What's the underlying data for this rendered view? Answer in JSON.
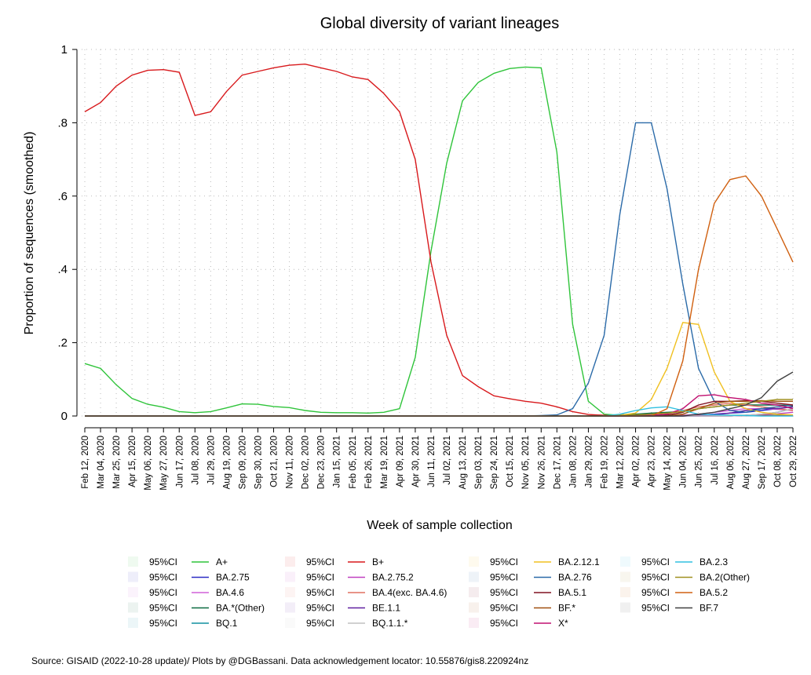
{
  "chart_data": {
    "type": "line",
    "title": "Global diversity of variant lineages",
    "y_label": "Proportion of sequences (smoothed)",
    "x_label": "Week of sample collection",
    "source": "Source: GISAID (2022-10-28 update)/ Plots by @DGBassani. Data acknowledgement locator: 10.55876/gis8.220924nz",
    "ci_label": "95%CI",
    "grid": true,
    "ylim": [
      0,
      1
    ],
    "yticks": [
      0,
      {
        "value": 0.2,
        "label": ".2"
      },
      {
        "value": 0.4,
        "label": ".4"
      },
      {
        "value": 0.6,
        "label": ".6"
      },
      {
        "value": 0.8,
        "label": ".8"
      },
      1
    ],
    "categories": [
      "Feb 12, 2020",
      "Mar 04, 2020",
      "Mar 25, 2020",
      "Apr 15, 2020",
      "May 06, 2020",
      "May 27, 2020",
      "Jun 17, 2020",
      "Jul 08, 2020",
      "Jul 29, 2020",
      "Aug 19, 2020",
      "Sep 09, 2020",
      "Sep 30, 2020",
      "Oct 21, 2020",
      "Nov 11, 2020",
      "Dec 02, 2020",
      "Dec 23, 2020",
      "Jan 15, 2021",
      "Feb 05, 2021",
      "Feb 26, 2021",
      "Mar 19, 2021",
      "Apr 09, 2021",
      "Apr 30, 2021",
      "Jun 11, 2021",
      "Jul 02, 2021",
      "Aug 13, 2021",
      "Sep 03, 2021",
      "Sep 24, 2021",
      "Oct 15, 2021",
      "Nov 05, 2021",
      "Nov 26, 2021",
      "Dec 17, 2021",
      "Jan 08, 2022",
      "Jan 29, 2022",
      "Feb 19, 2022",
      "Mar 12, 2022",
      "Apr 02, 2022",
      "Apr 23, 2022",
      "May 14, 2022",
      "Jun 04, 2022",
      "Jun 25, 2022",
      "Jul 16, 2022",
      "Aug 06, 2022",
      "Aug 27, 2022",
      "Sep 17, 2022",
      "Oct 08, 2022",
      "Oct 29, 2022"
    ],
    "series": [
      {
        "name": "A+",
        "color": "#2fc43a",
        "values": [
          0.143,
          0.13,
          0.085,
          0.048,
          0.032,
          0.024,
          0.012,
          0.009,
          0.012,
          0.022,
          0.033,
          0.032,
          0.026,
          0.023,
          0.015,
          0.01,
          0.009,
          0.009,
          0.008,
          0.01,
          0.02,
          0.16,
          0.45,
          0.69,
          0.86,
          0.91,
          0.935,
          0.948,
          0.952,
          0.95,
          0.72,
          0.25,
          0.04,
          0.005,
          0.002,
          0.002,
          0.002,
          0.002,
          0.002,
          0.002,
          0.002,
          0.002,
          0.002,
          0.002,
          0.002,
          0.002
        ]
      },
      {
        "name": "BA.2.75",
        "color": "#2a2ac4",
        "values": [
          0,
          0,
          0,
          0,
          0,
          0,
          0,
          0,
          0,
          0,
          0,
          0,
          0,
          0,
          0,
          0,
          0,
          0,
          0,
          0,
          0,
          0,
          0,
          0,
          0,
          0,
          0,
          0,
          0,
          0,
          0,
          0,
          0,
          0,
          0,
          0,
          0,
          0,
          0,
          0.003,
          0.005,
          0.008,
          0.01,
          0.015,
          0.02,
          0.025
        ]
      },
      {
        "name": "BA.4.6",
        "color": "#d060d8",
        "values": [
          0,
          0,
          0,
          0,
          0,
          0,
          0,
          0,
          0,
          0,
          0,
          0,
          0,
          0,
          0,
          0,
          0,
          0,
          0,
          0,
          0,
          0,
          0,
          0,
          0,
          0,
          0,
          0,
          0,
          0,
          0,
          0,
          0,
          0,
          0,
          0,
          0,
          0,
          0.002,
          0.005,
          0.01,
          0.015,
          0.02,
          0.02,
          0.018,
          0.015
        ]
      },
      {
        "name": "BA.*(Other)",
        "color": "#0a6a40",
        "values": [
          0,
          0,
          0,
          0,
          0,
          0,
          0,
          0,
          0,
          0,
          0,
          0,
          0,
          0,
          0,
          0,
          0,
          0,
          0,
          0,
          0,
          0,
          0,
          0,
          0,
          0,
          0,
          0,
          0,
          0,
          0,
          0,
          0,
          0,
          0.003,
          0.005,
          0.008,
          0.01,
          0.012,
          0.02,
          0.025,
          0.03,
          0.03,
          0.03,
          0.03,
          0.028
        ]
      },
      {
        "name": "BQ.1",
        "color": "#1090a0",
        "values": [
          0,
          0,
          0,
          0,
          0,
          0,
          0,
          0,
          0,
          0,
          0,
          0,
          0,
          0,
          0,
          0,
          0,
          0,
          0,
          0,
          0,
          0,
          0,
          0,
          0,
          0,
          0,
          0,
          0,
          0,
          0,
          0,
          0,
          0,
          0,
          0,
          0,
          0,
          0,
          0,
          0,
          0,
          0.002,
          0.005,
          0.01,
          0.02
        ]
      },
      {
        "name": "B+",
        "color": "#d8191c",
        "values": [
          0.83,
          0.855,
          0.9,
          0.93,
          0.943,
          0.945,
          0.938,
          0.82,
          0.83,
          0.885,
          0.93,
          0.94,
          0.95,
          0.957,
          0.96,
          0.95,
          0.94,
          0.925,
          0.918,
          0.88,
          0.83,
          0.7,
          0.42,
          0.22,
          0.11,
          0.08,
          0.055,
          0.047,
          0.04,
          0.035,
          0.025,
          0.012,
          0.004,
          0.002,
          0.001,
          0.001,
          0.001,
          0.001,
          0.001,
          0.001,
          0.001,
          0.001,
          0.001,
          0.001,
          0.001,
          0.001
        ]
      },
      {
        "name": "BA.2.75.2",
        "color": "#c040c0",
        "values": [
          0,
          0,
          0,
          0,
          0,
          0,
          0,
          0,
          0,
          0,
          0,
          0,
          0,
          0,
          0,
          0,
          0,
          0,
          0,
          0,
          0,
          0,
          0,
          0,
          0,
          0,
          0,
          0,
          0,
          0,
          0,
          0,
          0,
          0,
          0,
          0,
          0,
          0,
          0,
          0,
          0,
          0,
          0.002,
          0.004,
          0.006,
          0.01
        ]
      },
      {
        "name": "BA.4(exc. BA.4.6)",
        "color": "#e07060",
        "values": [
          0,
          0,
          0,
          0,
          0,
          0,
          0,
          0,
          0,
          0,
          0,
          0,
          0,
          0,
          0,
          0,
          0,
          0,
          0,
          0,
          0,
          0,
          0,
          0,
          0,
          0,
          0,
          0,
          0,
          0,
          0,
          0,
          0,
          0,
          0,
          0,
          0,
          0.005,
          0.015,
          0.025,
          0.03,
          0.035,
          0.03,
          0.025,
          0.02,
          0.015
        ]
      },
      {
        "name": "BE.1.1",
        "color": "#6020a0",
        "values": [
          0,
          0,
          0,
          0,
          0,
          0,
          0,
          0,
          0,
          0,
          0,
          0,
          0,
          0,
          0,
          0,
          0,
          0,
          0,
          0,
          0,
          0,
          0,
          0,
          0,
          0,
          0,
          0,
          0,
          0,
          0,
          0,
          0,
          0,
          0,
          0,
          0,
          0,
          0,
          0,
          0.003,
          0.008,
          0.015,
          0.02,
          0.02,
          0.025
        ]
      },
      {
        "name": "BQ.1.1.*",
        "color": "#c0c0c0",
        "values": [
          0,
          0,
          0,
          0,
          0,
          0,
          0,
          0,
          0,
          0,
          0,
          0,
          0,
          0,
          0,
          0,
          0,
          0,
          0,
          0,
          0,
          0,
          0,
          0,
          0,
          0,
          0,
          0,
          0,
          0,
          0,
          0,
          0,
          0,
          0,
          0,
          0,
          0,
          0,
          0,
          0,
          0,
          0.002,
          0.005,
          0.01,
          0.02
        ]
      },
      {
        "name": "BA.2.12.1",
        "color": "#f0c020",
        "values": [
          0,
          0,
          0,
          0,
          0,
          0,
          0,
          0,
          0,
          0,
          0,
          0,
          0,
          0,
          0,
          0,
          0,
          0,
          0,
          0,
          0,
          0,
          0,
          0,
          0,
          0,
          0,
          0,
          0,
          0,
          0,
          0,
          0,
          0,
          0.002,
          0.008,
          0.045,
          0.13,
          0.255,
          0.25,
          0.12,
          0.04,
          0.02,
          0.01,
          0.005,
          0.003
        ]
      },
      {
        "name": "BA.2.76",
        "color": "#2a6aa8",
        "values": [
          0,
          0,
          0,
          0,
          0,
          0,
          0,
          0,
          0,
          0,
          0,
          0,
          0,
          0,
          0,
          0,
          0,
          0,
          0,
          0,
          0,
          0,
          0,
          0,
          0,
          0,
          0,
          0,
          0,
          0.001,
          0.003,
          0.02,
          0.09,
          0.22,
          0.55,
          0.8,
          0.8,
          0.62,
          0.36,
          0.13,
          0.04,
          0.015,
          0.01,
          0.02,
          0.025,
          0.03
        ]
      },
      {
        "name": "BA.5.1",
        "color": "#801020",
        "values": [
          0,
          0,
          0,
          0,
          0,
          0,
          0,
          0,
          0,
          0,
          0,
          0,
          0,
          0,
          0,
          0,
          0,
          0,
          0,
          0,
          0,
          0,
          0,
          0,
          0,
          0,
          0,
          0,
          0,
          0,
          0,
          0,
          0,
          0,
          0,
          0,
          0,
          0.002,
          0.01,
          0.03,
          0.04,
          0.04,
          0.042,
          0.04,
          0.035,
          0.03
        ]
      },
      {
        "name": "BF.*",
        "color": "#a05010",
        "values": [
          0,
          0,
          0,
          0,
          0,
          0,
          0,
          0,
          0,
          0,
          0,
          0,
          0,
          0,
          0,
          0,
          0,
          0,
          0,
          0,
          0,
          0,
          0,
          0,
          0,
          0,
          0,
          0,
          0,
          0,
          0,
          0,
          0,
          0,
          0,
          0,
          0,
          0,
          0.005,
          0.02,
          0.035,
          0.04,
          0.04,
          0.042,
          0.04,
          0.04
        ]
      },
      {
        "name": "X*",
        "color": "#c01070",
        "values": [
          0,
          0,
          0,
          0,
          0,
          0,
          0,
          0,
          0,
          0,
          0,
          0,
          0,
          0,
          0,
          0,
          0,
          0,
          0,
          0,
          0,
          0,
          0,
          0,
          0,
          0,
          0,
          0,
          0,
          0,
          0,
          0,
          0,
          0,
          0,
          0,
          0.002,
          0.005,
          0.02,
          0.055,
          0.058,
          0.05,
          0.045,
          0.035,
          0.03,
          0.02
        ]
      },
      {
        "name": "BA.2.3",
        "color": "#30c0e0",
        "values": [
          0,
          0,
          0,
          0,
          0,
          0,
          0,
          0,
          0,
          0,
          0,
          0,
          0,
          0,
          0,
          0,
          0,
          0,
          0,
          0,
          0,
          0,
          0,
          0,
          0,
          0,
          0,
          0,
          0,
          0,
          0,
          0,
          0,
          0,
          0.005,
          0.015,
          0.022,
          0.025,
          0.015,
          0.005,
          0.003,
          0.002,
          0.001,
          0,
          0,
          0
        ]
      },
      {
        "name": "BA.2(Other)",
        "color": "#a09020",
        "values": [
          0,
          0,
          0,
          0,
          0,
          0,
          0,
          0,
          0,
          0,
          0,
          0,
          0,
          0,
          0,
          0,
          0,
          0,
          0,
          0,
          0,
          0,
          0,
          0,
          0,
          0,
          0,
          0,
          0,
          0,
          0,
          0,
          0,
          0,
          0.001,
          0.003,
          0.005,
          0.008,
          0.012,
          0.02,
          0.025,
          0.03,
          0.035,
          0.04,
          0.045,
          0.045
        ]
      },
      {
        "name": "BA.5.2",
        "color": "#d06010",
        "values": [
          0,
          0,
          0,
          0,
          0,
          0,
          0,
          0,
          0,
          0,
          0,
          0,
          0,
          0,
          0,
          0,
          0,
          0,
          0,
          0,
          0,
          0,
          0,
          0,
          0,
          0,
          0,
          0,
          0,
          0,
          0,
          0,
          0,
          0,
          0,
          0,
          0,
          0.02,
          0.15,
          0.4,
          0.58,
          0.645,
          0.655,
          0.6,
          0.51,
          0.42
        ]
      },
      {
        "name": "BF.7",
        "color": "#404040",
        "values": [
          0,
          0,
          0,
          0,
          0,
          0,
          0,
          0,
          0,
          0,
          0,
          0,
          0,
          0,
          0,
          0,
          0,
          0,
          0,
          0,
          0,
          0,
          0,
          0,
          0,
          0,
          0,
          0,
          0,
          0,
          0,
          0,
          0,
          0,
          0,
          0,
          0,
          0,
          0,
          0.005,
          0.01,
          0.02,
          0.03,
          0.05,
          0.095,
          0.12
        ]
      }
    ]
  }
}
